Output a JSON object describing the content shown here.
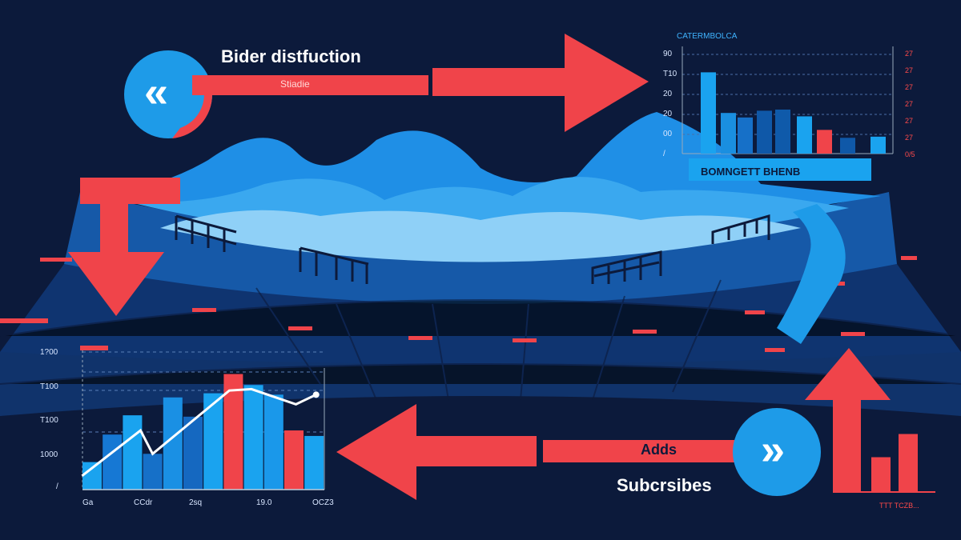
{
  "title": "Bider distfuction",
  "red_bar_label": "Stiadie",
  "adds_label": "Adds",
  "subscribers_label": "Subcrsibes",
  "bottom_right_caption": "TTT TCZB...",
  "colors": {
    "background": "#0c1a3b",
    "blue": "#1e9be8",
    "red": "#f0444a",
    "light_blue": "#8fd0f7",
    "white": "#ffffff"
  },
  "icons": {
    "left_circle": "double-chevron-left-icon",
    "right_circle": "double-chevron-right-icon"
  },
  "top_chart": {
    "title": "CATERMBOLCA",
    "subtitle": "BOMNGETT BHENB",
    "y_ticks_left": [
      "90",
      "T10",
      "20",
      "20",
      "00",
      "/"
    ],
    "y_ticks_right": [
      "27",
      "27",
      "27",
      "27",
      "27",
      "27",
      "0/5"
    ],
    "ylim": [
      0,
      90
    ],
    "bars": [
      {
        "value": 72,
        "color": "#1aa3ef"
      },
      {
        "value": 36,
        "color": "#1a8fe0"
      },
      {
        "value": 32,
        "color": "#1670c8"
      },
      {
        "value": 38,
        "color": "#0f58a8"
      },
      {
        "value": 39,
        "color": "#0f5aaa"
      },
      {
        "value": 33,
        "color": "#1aa3ef"
      },
      {
        "value": 21,
        "color": "#f0444a"
      },
      {
        "value": 14,
        "color": "#0f58a8"
      },
      {
        "value": 15,
        "color": "#1aa3ef"
      }
    ]
  },
  "bottom_chart": {
    "y_ticks": [
      "1?00",
      "T100",
      "T100",
      "1000",
      "/"
    ],
    "x_ticks": [
      "Ga",
      "CCdr",
      "2sq",
      "19.0",
      "OCZ3"
    ],
    "ylim": [
      0,
      100
    ],
    "bars": [
      {
        "value": 20,
        "color": "#1aa3ef"
      },
      {
        "value": 40,
        "color": "#1678d4"
      },
      {
        "value": 54,
        "color": "#1aa3ef"
      },
      {
        "value": 26,
        "color": "#1670c8"
      },
      {
        "value": 67,
        "color": "#1a90e4"
      },
      {
        "value": 53,
        "color": "#1568c0"
      },
      {
        "value": 70,
        "color": "#1aa3ef"
      },
      {
        "value": 84,
        "color": "#f0444a"
      },
      {
        "value": 76,
        "color": "#1aa3ef"
      },
      {
        "value": 69,
        "color": "#1a98ea"
      },
      {
        "value": 43,
        "color": "#f0444a"
      },
      {
        "value": 39,
        "color": "#1aa3ef"
      }
    ],
    "line": [
      [
        -0.5,
        10
      ],
      [
        2.4,
        43
      ],
      [
        3.0,
        26
      ],
      [
        6.8,
        72
      ],
      [
        7.9,
        73
      ],
      [
        10.1,
        62
      ],
      [
        11.1,
        69
      ]
    ]
  },
  "bottom_right_chart": {
    "bars": [
      {
        "value": 100
      },
      {
        "value": 30
      },
      {
        "value": 50
      }
    ]
  }
}
